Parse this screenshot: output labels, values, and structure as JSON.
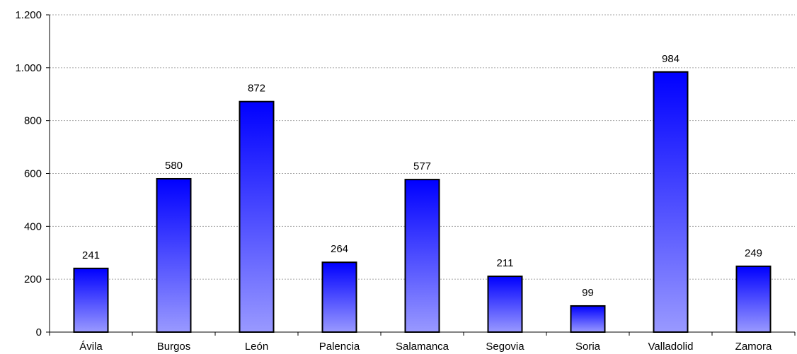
{
  "chart_data": {
    "type": "bar",
    "title": "",
    "xlabel": "",
    "ylabel": "",
    "categories": [
      "Ávila",
      "Burgos",
      "León",
      "Palencia",
      "Salamanca",
      "Segovia",
      "Soria",
      "Valladolid",
      "Zamora"
    ],
    "values": [
      241,
      580,
      872,
      264,
      577,
      211,
      99,
      984,
      249
    ],
    "ylim": [
      0,
      1200
    ],
    "yticks": [
      0,
      200,
      400,
      600,
      800,
      1000,
      1200
    ],
    "ytick_labels": [
      "0",
      "200",
      "400",
      "600",
      "800",
      "1.000",
      "1.200"
    ],
    "grid": true,
    "legend": "none",
    "colors": {
      "bar_top": "#0000ff",
      "bar_bottom": "#9999ff",
      "grid": "#a6a6a6"
    }
  }
}
